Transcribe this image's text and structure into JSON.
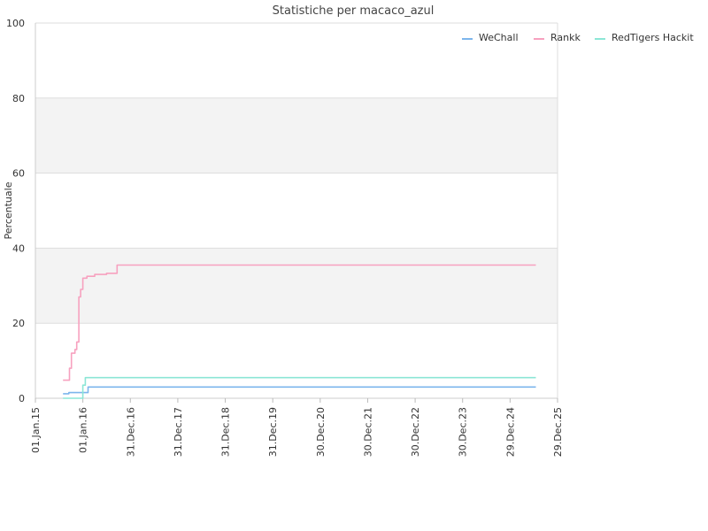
{
  "chart_data": {
    "type": "line",
    "title": "Statistiche per macaco_azul",
    "xlabel": "",
    "ylabel": "Percentuale",
    "ylim": [
      0,
      100
    ],
    "yticks": [
      0,
      20,
      40,
      60,
      80,
      100
    ],
    "xlim": [
      "2015-01-01",
      "2025-12-29"
    ],
    "xticks": [
      {
        "date": "2015-01-01",
        "label": "01.Jan.15"
      },
      {
        "date": "2016-01-01",
        "label": "01.Jan.16"
      },
      {
        "date": "2016-12-31",
        "label": "31.Dec.16"
      },
      {
        "date": "2017-12-31",
        "label": "31.Dec.17"
      },
      {
        "date": "2018-12-31",
        "label": "31.Dec.18"
      },
      {
        "date": "2019-12-31",
        "label": "31.Dec.19"
      },
      {
        "date": "2020-12-30",
        "label": "30.Dec.20"
      },
      {
        "date": "2021-12-30",
        "label": "30.Dec.21"
      },
      {
        "date": "2022-12-30",
        "label": "30.Dec.22"
      },
      {
        "date": "2023-12-30",
        "label": "30.Dec.23"
      },
      {
        "date": "2024-12-29",
        "label": "29.Dec.24"
      },
      {
        "date": "2025-12-29",
        "label": "29.Dec.25"
      }
    ],
    "grid": "horizontal bands",
    "legend_position": "top-right",
    "series": [
      {
        "name": "WeChall",
        "color": "#7cb5ec",
        "step": true,
        "points": [
          [
            "2015-08-01",
            1.2
          ],
          [
            "2015-09-15",
            1.5
          ],
          [
            "2016-02-05",
            1.5
          ],
          [
            "2016-02-10",
            3.0
          ],
          [
            "2025-07-15",
            3.0
          ]
        ]
      },
      {
        "name": "Rankk",
        "color": "#f7a1bf",
        "step": true,
        "points": [
          [
            "2015-08-01",
            4.8
          ],
          [
            "2015-09-20",
            8.0
          ],
          [
            "2015-10-05",
            12.0
          ],
          [
            "2015-11-01",
            13.0
          ],
          [
            "2015-11-15",
            15.0
          ],
          [
            "2015-12-01",
            27.0
          ],
          [
            "2015-12-15",
            29.0
          ],
          [
            "2016-01-01",
            32.0
          ],
          [
            "2016-02-01",
            32.5
          ],
          [
            "2016-04-01",
            33.0
          ],
          [
            "2016-07-01",
            33.3
          ],
          [
            "2016-09-20",
            35.5
          ],
          [
            "2025-07-15",
            35.5
          ]
        ]
      },
      {
        "name": "RedTigers Hackit",
        "color": "#8ce6d6",
        "step": true,
        "points": [
          [
            "2015-08-01",
            0.0
          ],
          [
            "2015-12-20",
            0.0
          ],
          [
            "2016-01-01",
            3.5
          ],
          [
            "2016-01-20",
            5.5
          ],
          [
            "2025-07-15",
            5.5
          ]
        ]
      }
    ]
  }
}
